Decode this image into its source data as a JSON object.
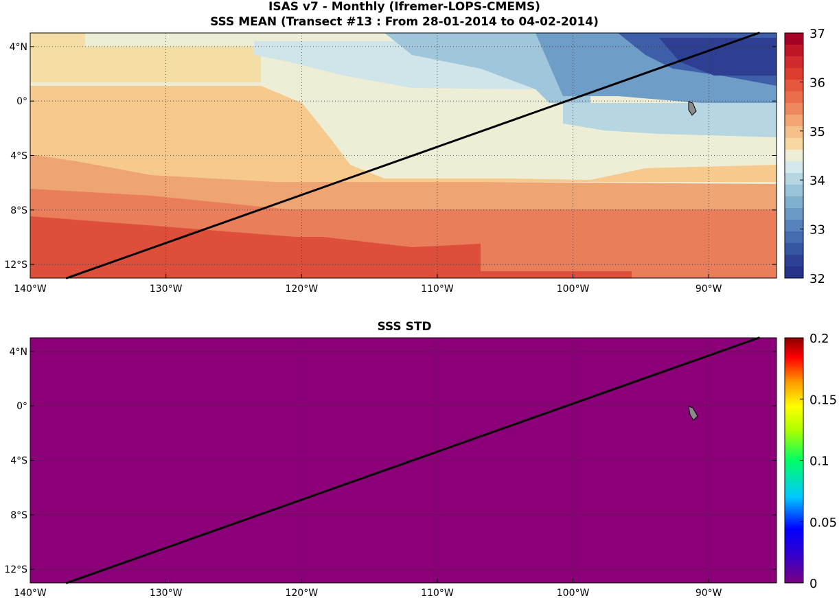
{
  "titles": {
    "line1": "ISAS v7 - Monthly (Ifremer-LOPS-CMEMS)",
    "line2": "SSS MEAN (Transect #13 : From 28-01-2014 to 04-02-2014)",
    "line3": "SSS STD"
  },
  "chart_data": [
    {
      "type": "heatmap",
      "title": "SSS MEAN (Transect #13 : From 28-01-2014 to 04-02-2014)",
      "xlim": [
        -140,
        -85
      ],
      "ylim": [
        -13,
        5
      ],
      "x_ticks": [
        -140,
        -130,
        -120,
        -110,
        -100,
        -90
      ],
      "x_tick_labels": [
        "140°W",
        "130°W",
        "120°W",
        "110°W",
        "100°W",
        "90°W"
      ],
      "y_ticks": [
        4,
        0,
        -4,
        -8,
        -12
      ],
      "y_tick_labels": [
        "4°N",
        "0°",
        "4°S",
        "8°S",
        "12°S"
      ],
      "grid": true,
      "colorbar": {
        "min": 32,
        "max": 37,
        "ticks": [
          37,
          36,
          35,
          34,
          33,
          32
        ],
        "tick_labels": [
          "37",
          "36",
          "35",
          "34",
          "33",
          "32"
        ],
        "colormap": "red-yellow-blue"
      },
      "approx_salinity_bands": [
        {
          "region": "north-east (4°N, 85-95°W)",
          "value": 32.3
        },
        {
          "region": "north-central (0-4°N, 100-115°W)",
          "value": 33.8
        },
        {
          "region": "equator east (0-4°S, 90-100°W)",
          "value": 34.7
        },
        {
          "region": "north-west (0-4°N, 130-140°W)",
          "value": 35.0
        },
        {
          "region": "equator west (0-4°S, 120-140°W)",
          "value": 35.2
        },
        {
          "region": "6-9°S",
          "value": 35.6
        },
        {
          "region": "9-11°S",
          "value": 35.8
        },
        {
          "region": "11-13°S west",
          "value": 36.1
        }
      ],
      "transect_line": {
        "x": [
          -137.3,
          -86.3
        ],
        "y": [
          -13,
          5
        ]
      }
    },
    {
      "type": "heatmap",
      "title": "SSS STD",
      "xlim": [
        -140,
        -85
      ],
      "ylim": [
        -13,
        5
      ],
      "x_ticks": [
        -140,
        -130,
        -120,
        -110,
        -100,
        -90
      ],
      "x_tick_labels": [
        "140°W",
        "130°W",
        "120°W",
        "110°W",
        "100°W",
        "90°W"
      ],
      "y_ticks": [
        4,
        0,
        -4,
        -8,
        -12
      ],
      "y_tick_labels": [
        "4°N",
        "0°",
        "4°S",
        "8°S",
        "12°S"
      ],
      "grid": true,
      "colorbar": {
        "min": 0,
        "max": 0.2,
        "ticks": [
          0.2,
          0.15,
          0.1,
          0.05,
          0
        ],
        "tick_labels": [
          "0.2",
          "0.15",
          "0.1",
          "0.05",
          "0"
        ],
        "colormap": "jet"
      },
      "field_value": 0,
      "transect_line": {
        "x": [
          -137.3,
          -86.3
        ],
        "y": [
          -13,
          5
        ]
      }
    }
  ],
  "colors": {
    "std_field": "#8b0079",
    "land": "#8c8c8c",
    "transect": "#000000"
  }
}
